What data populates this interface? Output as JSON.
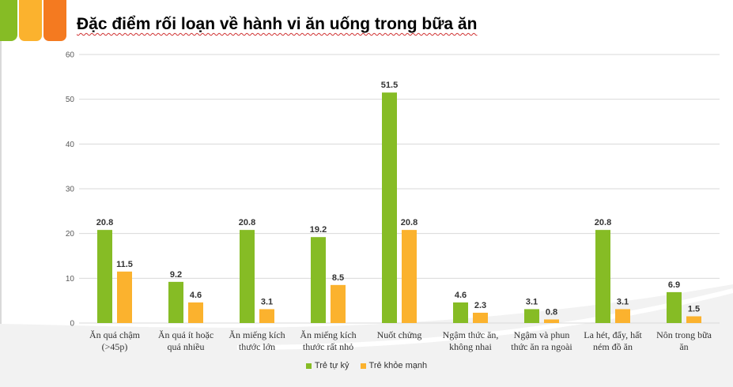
{
  "colors": {
    "deco_green": "#86bc25",
    "deco_yellow": "#fbb22e",
    "deco_orange": "#f47a20",
    "series_1": "#86bc25",
    "series_2": "#fbb22e",
    "gridline": "#d9d9d9",
    "axis_text": "#595959"
  },
  "slide": {
    "title": "Đặc điểm rối loạn về hành vi ăn uống trong bữa ăn"
  },
  "chart_data": {
    "type": "bar",
    "categories": [
      [
        "Ăn quá chậm",
        "(>45p)"
      ],
      [
        "Ăn quá ít hoặc",
        "quá nhiều"
      ],
      [
        "Ăn miếng kích",
        "thước lớn"
      ],
      [
        "Ăn miếng kích",
        "thước rất nhỏ"
      ],
      [
        "Nuốt chửng"
      ],
      [
        "Ngậm thức ăn,",
        "không nhai"
      ],
      [
        "Ngậm và phun",
        "thức ăn ra ngoài"
      ],
      [
        "La hét, đẩy, hất",
        "ném đồ ăn"
      ],
      [
        "Nôn trong bữa",
        "ăn"
      ]
    ],
    "series": [
      {
        "name": "Trẻ tự kỷ",
        "values": [
          20.8,
          9.2,
          20.8,
          19.2,
          51.5,
          4.6,
          3.1,
          20.8,
          6.9
        ]
      },
      {
        "name": "Trẻ khỏe mạnh",
        "values": [
          11.5,
          4.6,
          3.1,
          8.5,
          20.8,
          2.3,
          0.8,
          3.1,
          1.5
        ]
      }
    ],
    "ylim": [
      0,
      60
    ],
    "yticks": [
      "0",
      "10",
      "20",
      "30",
      "40",
      "50",
      "60"
    ],
    "gridlines": true,
    "legend_position": "bottom"
  }
}
